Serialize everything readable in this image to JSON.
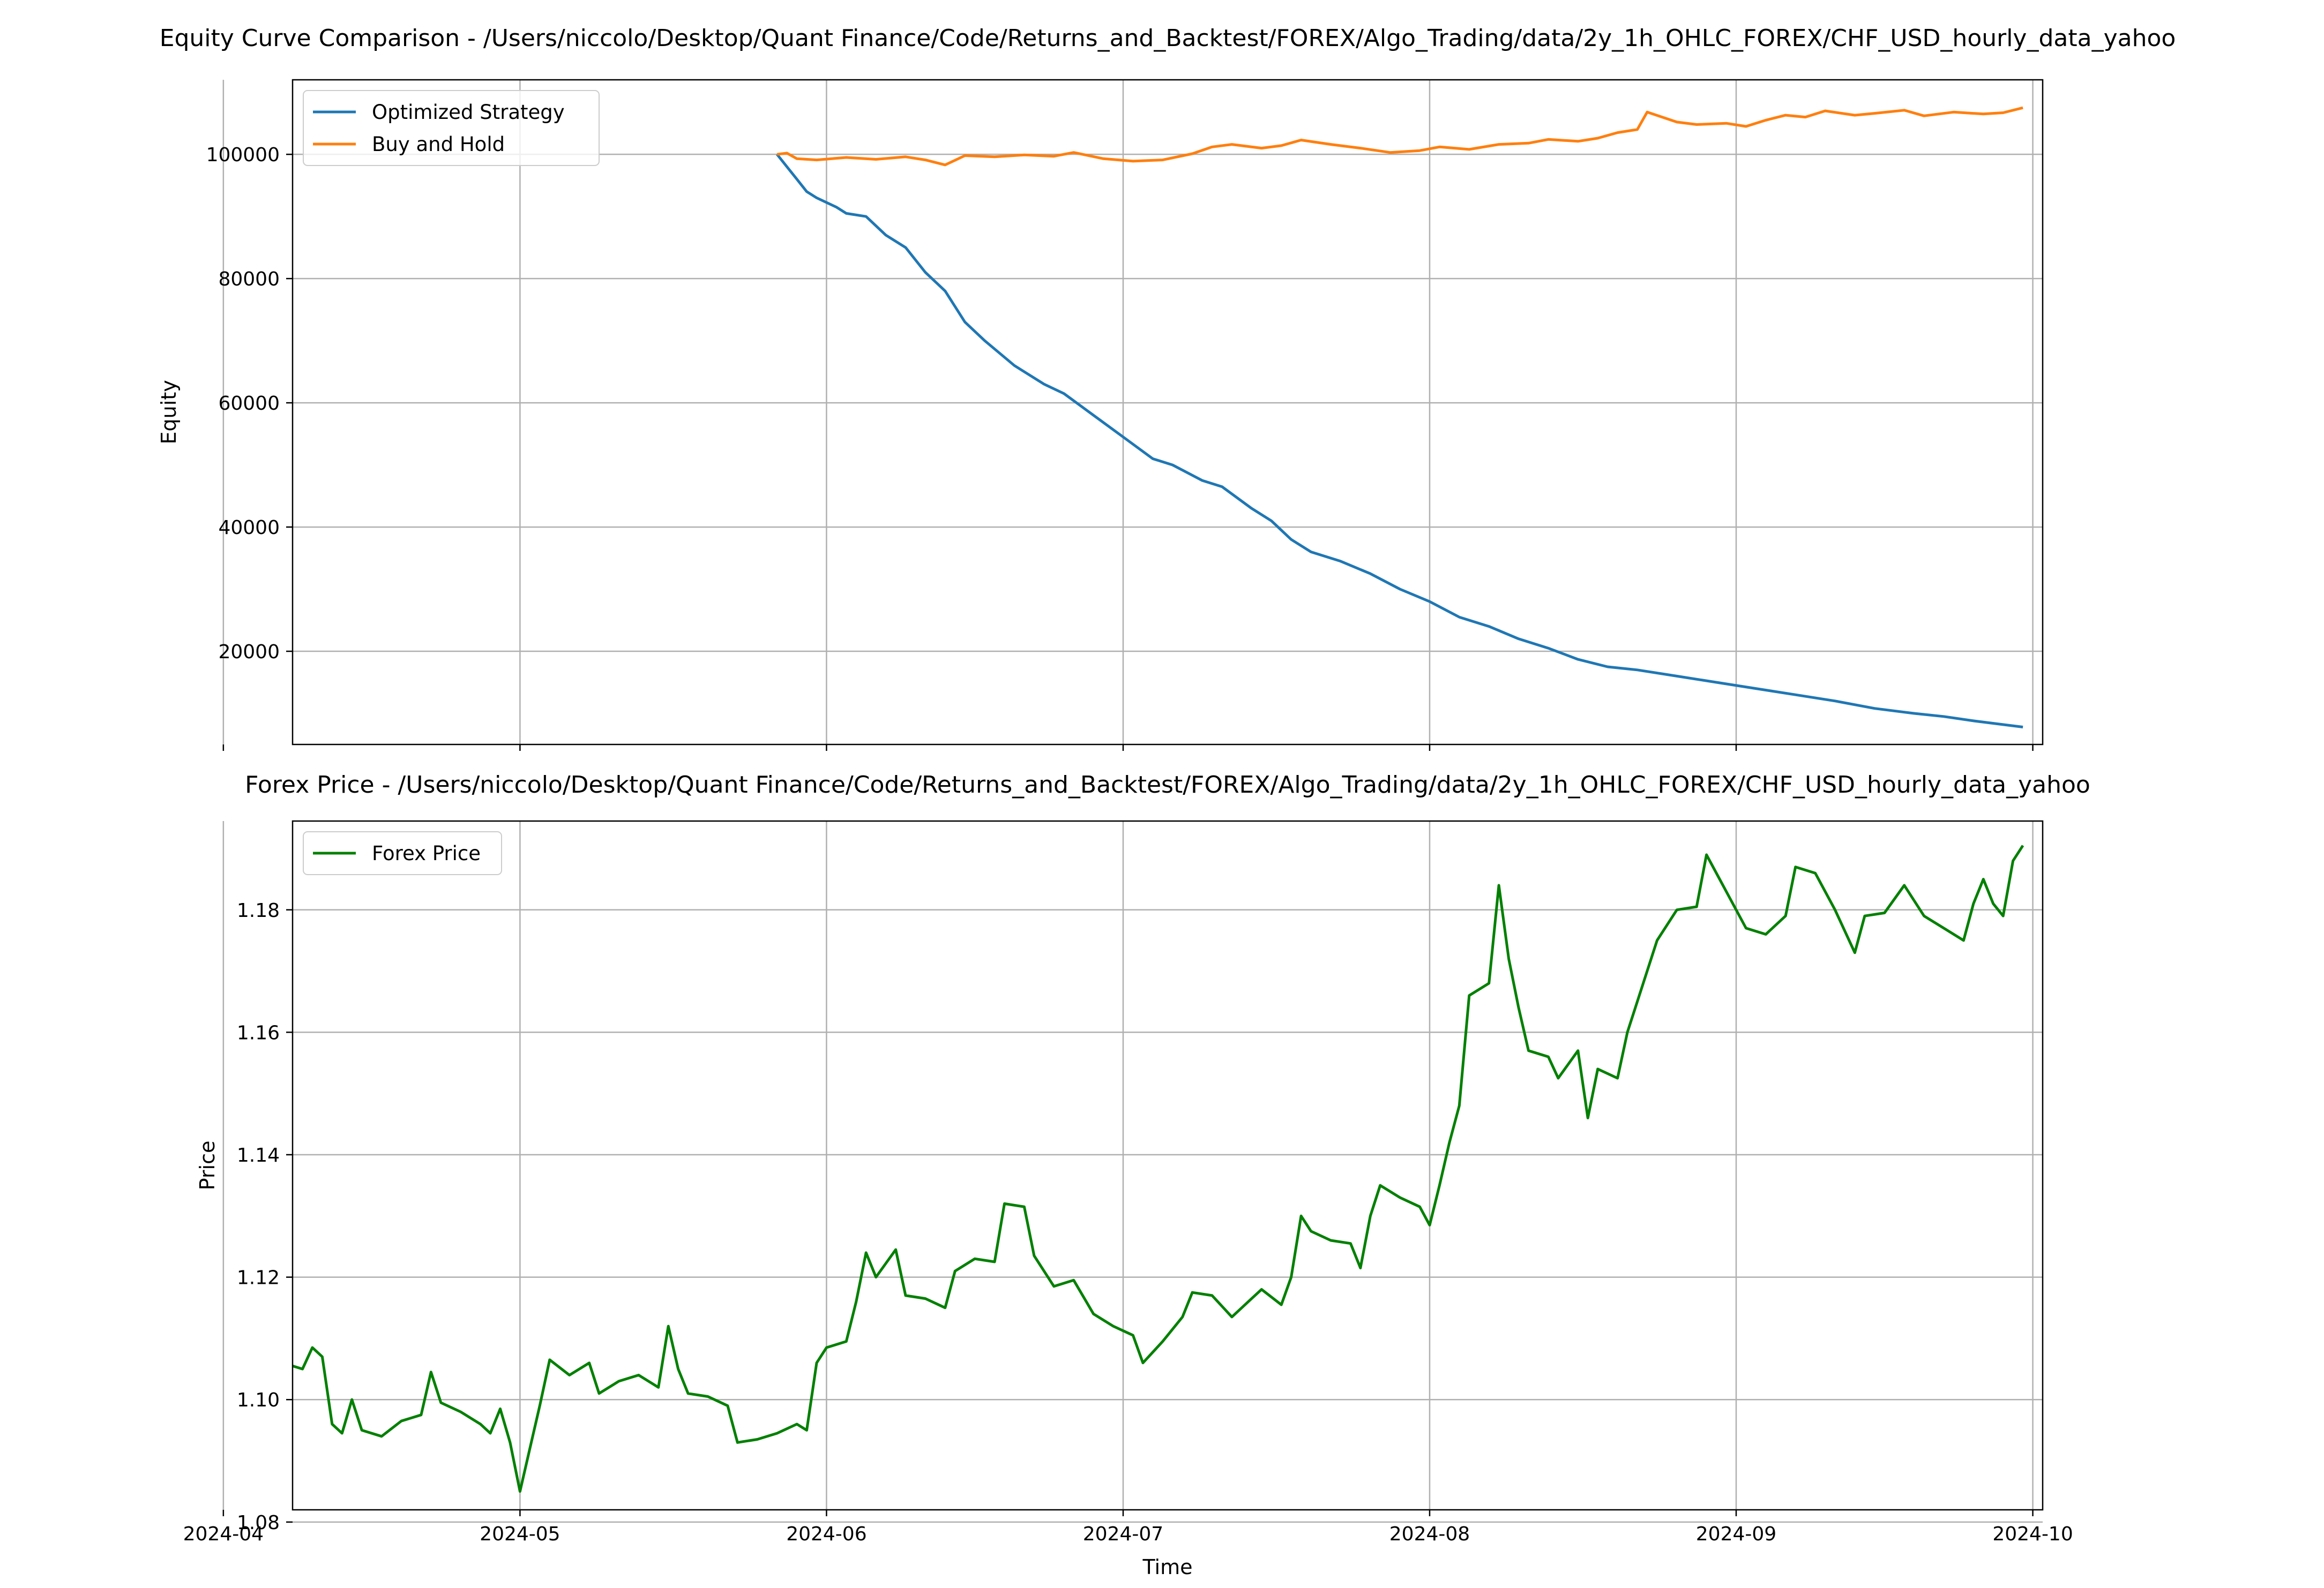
{
  "chart_data": [
    {
      "type": "line",
      "title": "Equity Curve Comparison - /Users/niccolo/Desktop/Quant Finance/Code/Returns_and_Backtest/FOREX/Algo_Trading/data/2y_1h_OHLC_FOREX/CHF_USD_hourly_data_yahoo",
      "xlabel": "",
      "ylabel": "Equity",
      "x_range": [
        "2024-04-08",
        "2024-10-02"
      ],
      "ylim": [
        5000,
        112000
      ],
      "yticks": [
        20000,
        40000,
        60000,
        80000,
        100000
      ],
      "grid": true,
      "legend": "upper left",
      "series": [
        {
          "name": "Optimized Strategy",
          "color": "#1f77b4",
          "points": [
            [
              "2024-05-27",
              100000
            ],
            [
              "2024-05-28",
              98000
            ],
            [
              "2024-05-29",
              96000
            ],
            [
              "2024-05-30",
              94000
            ],
            [
              "2024-05-31",
              93000
            ],
            [
              "2024-06-02",
              91500
            ],
            [
              "2024-06-03",
              90500
            ],
            [
              "2024-06-05",
              90000
            ],
            [
              "2024-06-07",
              87000
            ],
            [
              "2024-06-09",
              85000
            ],
            [
              "2024-06-11",
              81000
            ],
            [
              "2024-06-13",
              78000
            ],
            [
              "2024-06-15",
              73000
            ],
            [
              "2024-06-17",
              70000
            ],
            [
              "2024-06-20",
              66000
            ],
            [
              "2024-06-23",
              63000
            ],
            [
              "2024-06-25",
              61500
            ],
            [
              "2024-06-28",
              58000
            ],
            [
              "2024-07-01",
              54500
            ],
            [
              "2024-07-04",
              51000
            ],
            [
              "2024-07-06",
              50000
            ],
            [
              "2024-07-09",
              47500
            ],
            [
              "2024-07-11",
              46500
            ],
            [
              "2024-07-14",
              43000
            ],
            [
              "2024-07-16",
              41000
            ],
            [
              "2024-07-18",
              38000
            ],
            [
              "2024-07-20",
              36000
            ],
            [
              "2024-07-23",
              34500
            ],
            [
              "2024-07-26",
              32500
            ],
            [
              "2024-07-29",
              30000
            ],
            [
              "2024-08-01",
              28000
            ],
            [
              "2024-08-04",
              25500
            ],
            [
              "2024-08-07",
              24000
            ],
            [
              "2024-08-10",
              22000
            ],
            [
              "2024-08-13",
              20500
            ],
            [
              "2024-08-16",
              18700
            ],
            [
              "2024-08-19",
              17500
            ],
            [
              "2024-08-22",
              17000
            ],
            [
              "2024-08-26",
              16000
            ],
            [
              "2024-08-30",
              15000
            ],
            [
              "2024-09-03",
              14000
            ],
            [
              "2024-09-07",
              13000
            ],
            [
              "2024-09-11",
              12000
            ],
            [
              "2024-09-15",
              10800
            ],
            [
              "2024-09-19",
              10000
            ],
            [
              "2024-09-22",
              9500
            ],
            [
              "2024-09-25",
              8800
            ],
            [
              "2024-09-28",
              8200
            ],
            [
              "2024-09-30",
              7800
            ]
          ]
        },
        {
          "name": "Buy and Hold",
          "color": "#ff7f0e",
          "points": [
            [
              "2024-05-27",
              100000
            ],
            [
              "2024-05-28",
              100200
            ],
            [
              "2024-05-29",
              99300
            ],
            [
              "2024-05-31",
              99100
            ],
            [
              "2024-06-03",
              99500
            ],
            [
              "2024-06-06",
              99200
            ],
            [
              "2024-06-09",
              99600
            ],
            [
              "2024-06-11",
              99100
            ],
            [
              "2024-06-13",
              98300
            ],
            [
              "2024-06-15",
              99800
            ],
            [
              "2024-06-18",
              99600
            ],
            [
              "2024-06-21",
              99900
            ],
            [
              "2024-06-24",
              99700
            ],
            [
              "2024-06-26",
              100300
            ],
            [
              "2024-06-29",
              99300
            ],
            [
              "2024-07-02",
              98900
            ],
            [
              "2024-07-05",
              99100
            ],
            [
              "2024-07-08",
              100100
            ],
            [
              "2024-07-10",
              101200
            ],
            [
              "2024-07-12",
              101600
            ],
            [
              "2024-07-15",
              101000
            ],
            [
              "2024-07-17",
              101400
            ],
            [
              "2024-07-19",
              102300
            ],
            [
              "2024-07-22",
              101600
            ],
            [
              "2024-07-25",
              101000
            ],
            [
              "2024-07-28",
              100300
            ],
            [
              "2024-07-31",
              100600
            ],
            [
              "2024-08-02",
              101200
            ],
            [
              "2024-08-05",
              100800
            ],
            [
              "2024-08-08",
              101600
            ],
            [
              "2024-08-11",
              101800
            ],
            [
              "2024-08-13",
              102400
            ],
            [
              "2024-08-16",
              102100
            ],
            [
              "2024-08-18",
              102600
            ],
            [
              "2024-08-20",
              103500
            ],
            [
              "2024-08-22",
              104000
            ],
            [
              "2024-08-23",
              106800
            ],
            [
              "2024-08-26",
              105200
            ],
            [
              "2024-08-28",
              104800
            ],
            [
              "2024-08-31",
              105000
            ],
            [
              "2024-09-02",
              104500
            ],
            [
              "2024-09-04",
              105500
            ],
            [
              "2024-09-06",
              106300
            ],
            [
              "2024-09-08",
              106000
            ],
            [
              "2024-09-10",
              107000
            ],
            [
              "2024-09-13",
              106300
            ],
            [
              "2024-09-15",
              106600
            ],
            [
              "2024-09-18",
              107100
            ],
            [
              "2024-09-20",
              106200
            ],
            [
              "2024-09-23",
              106800
            ],
            [
              "2024-09-26",
              106500
            ],
            [
              "2024-09-28",
              106700
            ],
            [
              "2024-09-30",
              107500
            ]
          ]
        }
      ]
    },
    {
      "type": "line",
      "title": "Forex Price - /Users/niccolo/Desktop/Quant Finance/Code/Returns_and_Backtest/FOREX/Algo_Trading/data/2y_1h_OHLC_FOREX/CHF_USD_hourly_data_yahoo",
      "xlabel": "Time",
      "ylabel": "Price",
      "x_range": [
        "2024-04-08",
        "2024-10-02"
      ],
      "xticks": [
        "2024-04",
        "2024-05",
        "2024-06",
        "2024-07",
        "2024-08",
        "2024-09",
        "2024-10"
      ],
      "ylim": [
        1.082,
        1.1945
      ],
      "yticks": [
        1.08,
        1.1,
        1.12,
        1.14,
        1.16,
        1.18
      ],
      "grid": true,
      "legend": "upper left",
      "series": [
        {
          "name": "Forex Price",
          "color": "#008000",
          "points": [
            [
              "2024-04-08",
              1.1055
            ],
            [
              "2024-04-09",
              1.105
            ],
            [
              "2024-04-10",
              1.1085
            ],
            [
              "2024-04-11",
              1.107
            ],
            [
              "2024-04-12",
              1.096
            ],
            [
              "2024-04-13",
              1.0945
            ],
            [
              "2024-04-14",
              1.1
            ],
            [
              "2024-04-15",
              1.095
            ],
            [
              "2024-04-17",
              1.094
            ],
            [
              "2024-04-19",
              1.0965
            ],
            [
              "2024-04-21",
              1.0975
            ],
            [
              "2024-04-22",
              1.1045
            ],
            [
              "2024-04-23",
              1.0995
            ],
            [
              "2024-04-25",
              1.098
            ],
            [
              "2024-04-27",
              1.096
            ],
            [
              "2024-04-28",
              1.0945
            ],
            [
              "2024-04-29",
              1.0985
            ],
            [
              "2024-04-30",
              1.093
            ],
            [
              "2024-05-01",
              1.085
            ],
            [
              "2024-05-02",
              1.092
            ],
            [
              "2024-05-03",
              1.099
            ],
            [
              "2024-05-04",
              1.1065
            ],
            [
              "2024-05-06",
              1.104
            ],
            [
              "2024-05-08",
              1.106
            ],
            [
              "2024-05-09",
              1.101
            ],
            [
              "2024-05-11",
              1.103
            ],
            [
              "2024-05-13",
              1.104
            ],
            [
              "2024-05-15",
              1.102
            ],
            [
              "2024-05-16",
              1.112
            ],
            [
              "2024-05-17",
              1.105
            ],
            [
              "2024-05-18",
              1.101
            ],
            [
              "2024-05-20",
              1.1005
            ],
            [
              "2024-05-22",
              1.099
            ],
            [
              "2024-05-23",
              1.093
            ],
            [
              "2024-05-25",
              1.0935
            ],
            [
              "2024-05-27",
              1.0945
            ],
            [
              "2024-05-29",
              1.096
            ],
            [
              "2024-05-30",
              1.095
            ],
            [
              "2024-05-31",
              1.106
            ],
            [
              "2024-06-01",
              1.1085
            ],
            [
              "2024-06-03",
              1.1095
            ],
            [
              "2024-06-04",
              1.116
            ],
            [
              "2024-06-05",
              1.124
            ],
            [
              "2024-06-06",
              1.12
            ],
            [
              "2024-06-08",
              1.1245
            ],
            [
              "2024-06-09",
              1.117
            ],
            [
              "2024-06-11",
              1.1165
            ],
            [
              "2024-06-13",
              1.115
            ],
            [
              "2024-06-14",
              1.121
            ],
            [
              "2024-06-16",
              1.123
            ],
            [
              "2024-06-18",
              1.1225
            ],
            [
              "2024-06-19",
              1.132
            ],
            [
              "2024-06-21",
              1.1315
            ],
            [
              "2024-06-22",
              1.1235
            ],
            [
              "2024-06-24",
              1.1185
            ],
            [
              "2024-06-26",
              1.1195
            ],
            [
              "2024-06-28",
              1.114
            ],
            [
              "2024-06-30",
              1.112
            ],
            [
              "2024-07-02",
              1.1105
            ],
            [
              "2024-07-03",
              1.106
            ],
            [
              "2024-07-05",
              1.1095
            ],
            [
              "2024-07-07",
              1.1135
            ],
            [
              "2024-07-08",
              1.1175
            ],
            [
              "2024-07-10",
              1.117
            ],
            [
              "2024-07-12",
              1.1135
            ],
            [
              "2024-07-14",
              1.1165
            ],
            [
              "2024-07-15",
              1.118
            ],
            [
              "2024-07-17",
              1.1155
            ],
            [
              "2024-07-18",
              1.12
            ],
            [
              "2024-07-19",
              1.13
            ],
            [
              "2024-07-20",
              1.1275
            ],
            [
              "2024-07-22",
              1.126
            ],
            [
              "2024-07-24",
              1.1255
            ],
            [
              "2024-07-25",
              1.1215
            ],
            [
              "2024-07-26",
              1.13
            ],
            [
              "2024-07-27",
              1.135
            ],
            [
              "2024-07-29",
              1.133
            ],
            [
              "2024-07-31",
              1.1315
            ],
            [
              "2024-08-01",
              1.1285
            ],
            [
              "2024-08-02",
              1.135
            ],
            [
              "2024-08-03",
              1.142
            ],
            [
              "2024-08-04",
              1.148
            ],
            [
              "2024-08-05",
              1.166
            ],
            [
              "2024-08-07",
              1.168
            ],
            [
              "2024-08-08",
              1.184
            ],
            [
              "2024-08-09",
              1.172
            ],
            [
              "2024-08-10",
              1.164
            ],
            [
              "2024-08-11",
              1.157
            ],
            [
              "2024-08-13",
              1.156
            ],
            [
              "2024-08-14",
              1.1525
            ],
            [
              "2024-08-16",
              1.157
            ],
            [
              "2024-08-17",
              1.146
            ],
            [
              "2024-08-18",
              1.154
            ],
            [
              "2024-08-20",
              1.1525
            ],
            [
              "2024-08-21",
              1.16
            ],
            [
              "2024-08-23",
              1.17
            ],
            [
              "2024-08-24",
              1.175
            ],
            [
              "2024-08-26",
              1.18
            ],
            [
              "2024-08-28",
              1.1805
            ],
            [
              "2024-08-29",
              1.189
            ],
            [
              "2024-08-31",
              1.183
            ],
            [
              "2024-09-02",
              1.177
            ],
            [
              "2024-09-04",
              1.176
            ],
            [
              "2024-09-06",
              1.179
            ],
            [
              "2024-09-07",
              1.187
            ],
            [
              "2024-09-09",
              1.186
            ],
            [
              "2024-09-11",
              1.18
            ],
            [
              "2024-09-13",
              1.173
            ],
            [
              "2024-09-14",
              1.179
            ],
            [
              "2024-09-16",
              1.1795
            ],
            [
              "2024-09-18",
              1.184
            ],
            [
              "2024-09-20",
              1.179
            ],
            [
              "2024-09-22",
              1.177
            ],
            [
              "2024-09-24",
              1.175
            ],
            [
              "2024-09-25",
              1.181
            ],
            [
              "2024-09-26",
              1.185
            ],
            [
              "2024-09-27",
              1.181
            ],
            [
              "2024-09-28",
              1.179
            ],
            [
              "2024-09-29",
              1.188
            ],
            [
              "2024-09-30",
              1.1905
            ]
          ]
        }
      ]
    }
  ]
}
